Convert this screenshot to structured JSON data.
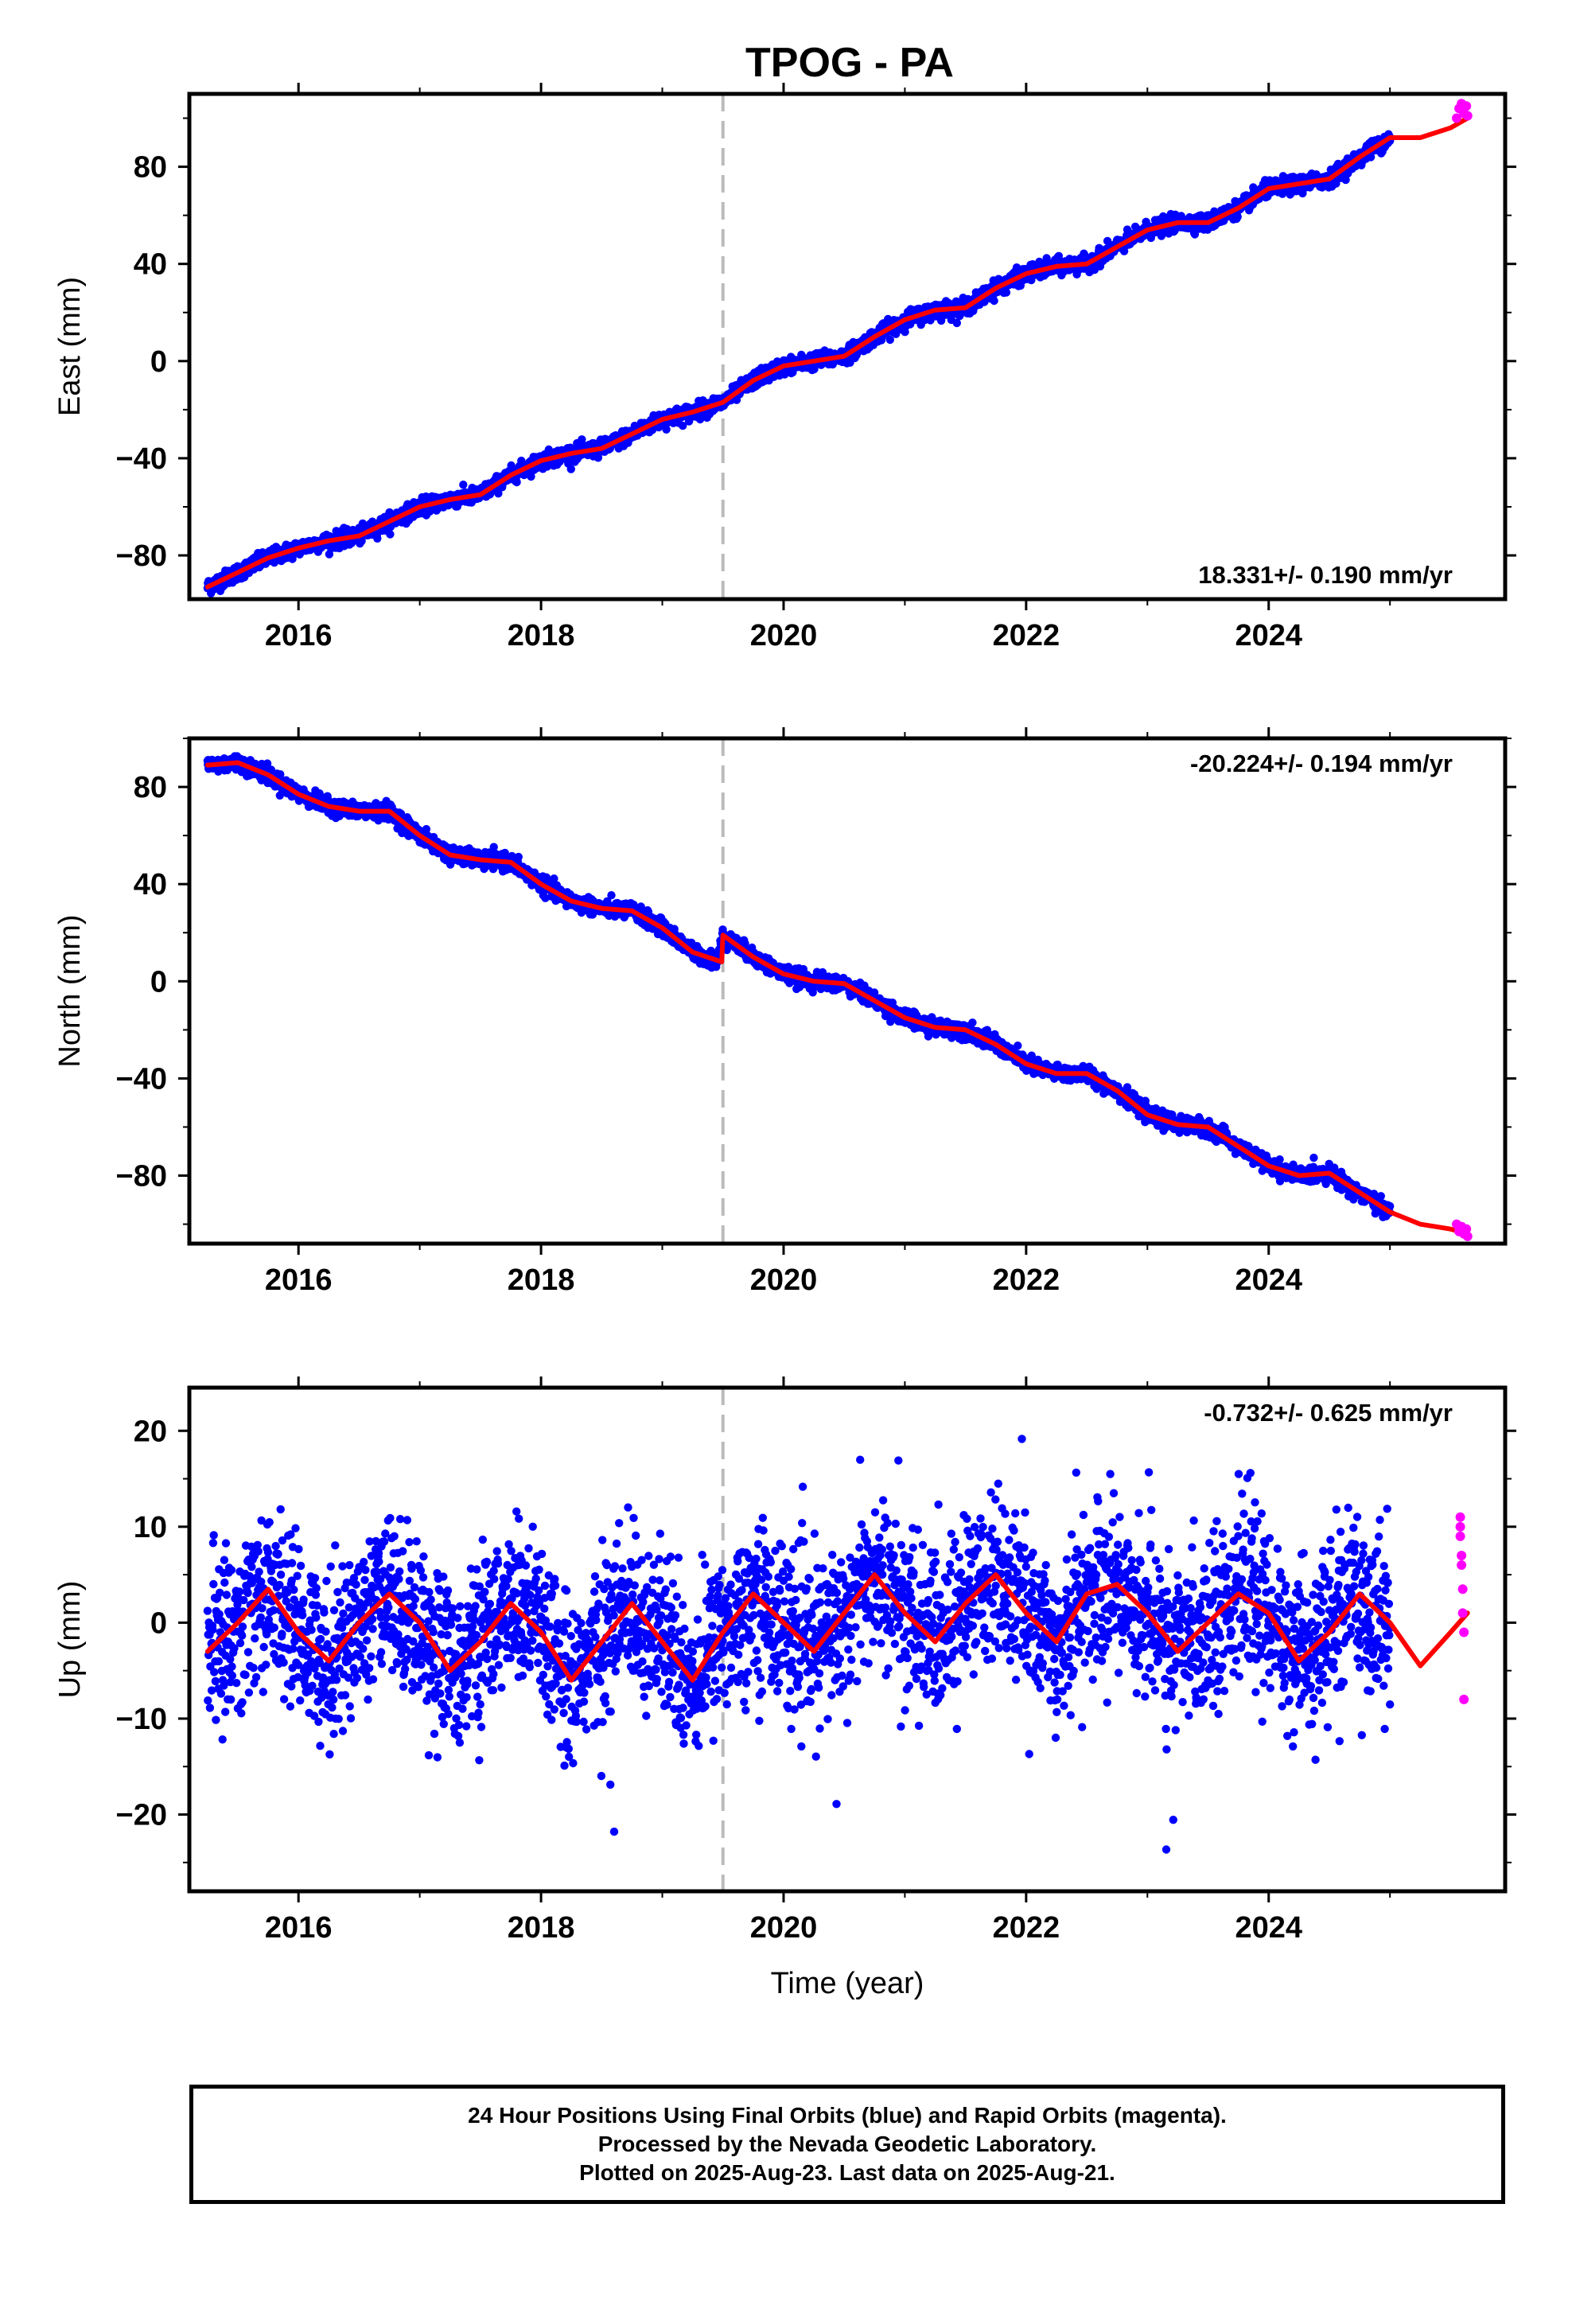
{
  "title": "TPOG - PA",
  "xlabel": "Time (year)",
  "caption": [
    "24 Hour Positions Using Final Orbits (blue) and Rapid Orbits (magenta).",
    "Processed by the Nevada Geodetic Laboratory.",
    "Plotted on 2025-Aug-23. Last data on 2025-Aug-21."
  ],
  "colors": {
    "final": "#0000ff",
    "rapid": "#ff00ff",
    "model": "#ff0000",
    "equipment_change": "#bbbbbb"
  },
  "chart_data": [
    {
      "type": "scatter",
      "ylabel": "East (mm)",
      "rate_label": "18.331+/- 0.190 mm/yr",
      "rate_position": "bottom-right",
      "xlim": [
        2015.1,
        2025.95
      ],
      "ylim": [
        -98,
        110
      ],
      "xticks": [
        2016,
        2018,
        2020,
        2022,
        2024
      ],
      "yticks": [
        -80,
        -40,
        0,
        40,
        80
      ],
      "equipment_change": 2019.5,
      "series": [
        {
          "role": "final",
          "x": [
            2015.25,
            2015.5,
            2015.75,
            2016.0,
            2016.25,
            2016.5,
            2016.75,
            2017.0,
            2017.25,
            2017.5,
            2017.75,
            2018.0,
            2018.25,
            2018.5,
            2018.75,
            2019.0,
            2019.25,
            2019.5,
            2019.75,
            2020.0,
            2020.25,
            2020.5,
            2020.75,
            2021.0,
            2021.25,
            2021.5,
            2021.75,
            2022.0,
            2022.25,
            2022.5,
            2022.75,
            2023.0,
            2023.25,
            2023.5,
            2023.75,
            2024.0,
            2024.25,
            2024.5,
            2024.75,
            2025.0
          ],
          "y": [
            -93,
            -87,
            -81,
            -77,
            -74,
            -72,
            -66,
            -60,
            -57,
            -55,
            -47,
            -41,
            -38,
            -36,
            -30,
            -24,
            -21,
            -17,
            -8,
            -2,
            0,
            2,
            10,
            17,
            21,
            22,
            30,
            36,
            39,
            40,
            47,
            54,
            57,
            57,
            63,
            71,
            73,
            75,
            84,
            92
          ]
        },
        {
          "role": "rapid",
          "x": [
            2025.55,
            2025.57,
            2025.59,
            2025.61,
            2025.63,
            2025.64
          ],
          "y": [
            100,
            104,
            106,
            102,
            105,
            101
          ]
        },
        {
          "role": "model",
          "x": [
            2015.25,
            2015.5,
            2015.75,
            2016.0,
            2016.25,
            2016.5,
            2016.75,
            2017.0,
            2017.25,
            2017.5,
            2017.75,
            2018.0,
            2018.25,
            2018.5,
            2018.75,
            2019.0,
            2019.25,
            2019.5,
            2019.75,
            2020.0,
            2020.25,
            2020.5,
            2020.75,
            2021.0,
            2021.25,
            2021.5,
            2021.75,
            2022.0,
            2022.25,
            2022.5,
            2022.75,
            2023.0,
            2023.25,
            2023.5,
            2023.75,
            2024.0,
            2024.25,
            2024.5,
            2024.75,
            2025.0,
            2025.25,
            2025.5,
            2025.64
          ],
          "y": [
            -93,
            -87,
            -81,
            -77,
            -74,
            -72,
            -66,
            -60,
            -57,
            -55,
            -47,
            -41,
            -38,
            -36,
            -30,
            -24,
            -21,
            -17,
            -8,
            -2,
            0,
            2,
            10,
            17,
            21,
            22,
            30,
            36,
            39,
            40,
            47,
            54,
            57,
            57,
            63,
            71,
            73,
            75,
            84,
            92,
            92,
            96,
            100
          ]
        }
      ]
    },
    {
      "type": "scatter",
      "ylabel": "North (mm)",
      "rate_label": "-20.224+/- 0.194 mm/yr",
      "rate_position": "top-right",
      "xlim": [
        2015.1,
        2025.95
      ],
      "ylim": [
        -108,
        100
      ],
      "xticks": [
        2016,
        2018,
        2020,
        2022,
        2024
      ],
      "yticks": [
        -80,
        -40,
        0,
        40,
        80
      ],
      "equipment_change": 2019.5,
      "series": [
        {
          "role": "final",
          "x": [
            2015.25,
            2015.5,
            2015.75,
            2016.0,
            2016.25,
            2016.5,
            2016.75,
            2017.0,
            2017.25,
            2017.5,
            2017.75,
            2018.0,
            2018.25,
            2018.5,
            2018.75,
            2019.0,
            2019.25,
            2019.45,
            2019.5,
            2019.75,
            2020.0,
            2020.25,
            2020.5,
            2020.75,
            2021.0,
            2021.25,
            2021.5,
            2021.75,
            2022.0,
            2022.25,
            2022.5,
            2022.75,
            2023.0,
            2023.25,
            2023.5,
            2023.75,
            2024.0,
            2024.25,
            2024.5,
            2024.75,
            2025.0
          ],
          "y": [
            89,
            90,
            85,
            77,
            72,
            70,
            70,
            60,
            52,
            50,
            49,
            40,
            33,
            30,
            29,
            22,
            12,
            8,
            19,
            10,
            3,
            0,
            -1,
            -8,
            -15,
            -19,
            -20,
            -26,
            -34,
            -38,
            -38,
            -45,
            -55,
            -59,
            -60,
            -68,
            -76,
            -80,
            -79,
            -87,
            -95
          ]
        },
        {
          "role": "rapid",
          "x": [
            2025.55,
            2025.57,
            2025.59,
            2025.61,
            2025.63,
            2025.64
          ],
          "y": [
            -100,
            -103,
            -101,
            -104,
            -102,
            -105
          ]
        },
        {
          "role": "model",
          "x": [
            2015.25,
            2015.5,
            2015.75,
            2016.0,
            2016.25,
            2016.5,
            2016.75,
            2017.0,
            2017.25,
            2017.5,
            2017.75,
            2018.0,
            2018.25,
            2018.5,
            2018.75,
            2019.0,
            2019.25,
            2019.49,
            2019.5,
            2019.75,
            2020.0,
            2020.25,
            2020.5,
            2020.75,
            2021.0,
            2021.25,
            2021.5,
            2021.75,
            2022.0,
            2022.25,
            2022.5,
            2022.75,
            2023.0,
            2023.25,
            2023.5,
            2023.75,
            2024.0,
            2024.25,
            2024.5,
            2024.75,
            2025.0,
            2025.25,
            2025.5,
            2025.64
          ],
          "y": [
            89,
            90,
            85,
            77,
            72,
            70,
            70,
            60,
            52,
            50,
            49,
            40,
            33,
            30,
            29,
            22,
            12,
            8,
            19,
            10,
            3,
            0,
            -1,
            -8,
            -15,
            -19,
            -20,
            -26,
            -34,
            -38,
            -38,
            -45,
            -55,
            -59,
            -60,
            -68,
            -76,
            -80,
            -79,
            -87,
            -95,
            -100,
            -102,
            -104
          ]
        }
      ]
    },
    {
      "type": "scatter",
      "ylabel": "Up (mm)",
      "rate_label": "-0.732+/- 0.625 mm/yr",
      "rate_position": "top-right",
      "xlim": [
        2015.1,
        2025.95
      ],
      "ylim": [
        -28,
        24.5
      ],
      "xticks": [
        2016,
        2018,
        2020,
        2022,
        2024
      ],
      "yticks": [
        -20,
        -10,
        0,
        10,
        20
      ],
      "equipment_change": 2019.5,
      "series": [
        {
          "role": "final",
          "x": [
            2015.25,
            2015.5,
            2015.75,
            2016.0,
            2016.25,
            2016.5,
            2016.75,
            2017.0,
            2017.25,
            2017.5,
            2017.75,
            2018.0,
            2018.25,
            2018.5,
            2018.75,
            2019.0,
            2019.25,
            2019.5,
            2019.75,
            2020.0,
            2020.25,
            2020.5,
            2020.75,
            2021.0,
            2021.25,
            2021.5,
            2021.75,
            2022.0,
            2022.25,
            2022.5,
            2022.75,
            2023.0,
            2023.25,
            2023.5,
            2023.75,
            2024.0,
            2024.25,
            2024.5,
            2024.75,
            2025.0
          ],
          "y": [
            -3,
            0,
            3.5,
            -1,
            -4,
            0,
            3,
            0,
            -5,
            -2,
            2,
            -1,
            -6,
            -2,
            2,
            -2,
            -6,
            -1,
            3,
            0,
            -3,
            1,
            5,
            1,
            -2,
            2,
            5,
            1,
            -2,
            3,
            4,
            1,
            -3,
            0,
            3,
            1,
            -4,
            -1,
            3,
            0
          ]
        },
        {
          "role": "rapid",
          "x": [
            2025.58,
            2025.58,
            2025.58,
            2025.59,
            2025.59,
            2025.6,
            2025.6,
            2025.61,
            2025.61
          ],
          "y": [
            11,
            10,
            9,
            7,
            6,
            3.5,
            1,
            -1,
            -8
          ]
        },
        {
          "role": "model",
          "x": [
            2015.25,
            2015.5,
            2015.75,
            2016.0,
            2016.25,
            2016.5,
            2016.75,
            2017.0,
            2017.25,
            2017.5,
            2017.75,
            2018.0,
            2018.25,
            2018.5,
            2018.75,
            2019.0,
            2019.25,
            2019.5,
            2019.75,
            2020.0,
            2020.25,
            2020.5,
            2020.75,
            2021.0,
            2021.25,
            2021.5,
            2021.75,
            2022.0,
            2022.25,
            2022.5,
            2022.75,
            2023.0,
            2023.25,
            2023.5,
            2023.75,
            2024.0,
            2024.25,
            2024.5,
            2024.75,
            2025.0,
            2025.25,
            2025.5,
            2025.64
          ],
          "y": [
            -3,
            0,
            3.5,
            -1,
            -4,
            0,
            3,
            0,
            -5,
            -2,
            2,
            -1,
            -6,
            -2,
            2,
            -2,
            -6,
            -1,
            3,
            0,
            -3,
            1,
            5,
            1,
            -2,
            2,
            5,
            1,
            -2,
            3,
            4,
            1,
            -3,
            0,
            3,
            1,
            -4,
            -1,
            3,
            0,
            -4.5,
            -1,
            1
          ]
        }
      ]
    }
  ]
}
